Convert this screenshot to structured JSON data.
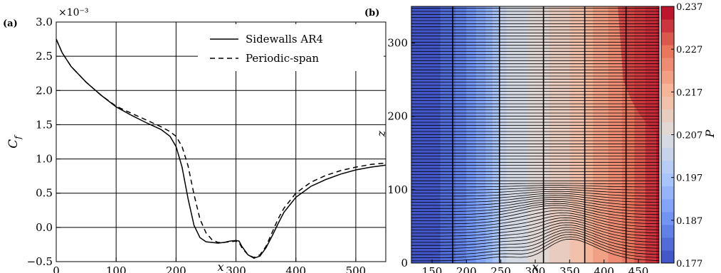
{
  "chart_data": [
    {
      "panel_label": "(a)",
      "type": "line",
      "xlabel": "x",
      "ylabel": "C_f",
      "exponent_label": "×10⁻³",
      "xlim": [
        0,
        550
      ],
      "ylim": [
        -0.5,
        3.0
      ],
      "xticks": [
        "0",
        "100",
        "200",
        "300",
        "400",
        "500"
      ],
      "yticks": [
        "−0.5",
        "0.0",
        "0.5",
        "1.0",
        "1.5",
        "2.0",
        "2.5",
        "3.0"
      ],
      "grid": true,
      "legend_position": "top-right",
      "series": [
        {
          "name": "Sidewalls AR4",
          "style": "solid",
          "x": [
            0,
            10,
            25,
            50,
            75,
            100,
            125,
            150,
            175,
            190,
            200,
            210,
            220,
            230,
            240,
            250,
            260,
            270,
            280,
            290,
            300,
            305,
            310,
            320,
            330,
            340,
            350,
            360,
            370,
            380,
            400,
            425,
            450,
            475,
            500,
            525,
            550
          ],
          "y": [
            2.75,
            2.55,
            2.35,
            2.12,
            1.93,
            1.76,
            1.64,
            1.53,
            1.43,
            1.33,
            1.18,
            0.88,
            0.42,
            0.03,
            -0.15,
            -0.21,
            -0.22,
            -0.23,
            -0.22,
            -0.2,
            -0.19,
            -0.2,
            -0.28,
            -0.4,
            -0.45,
            -0.42,
            -0.3,
            -0.13,
            0.05,
            0.22,
            0.44,
            0.6,
            0.7,
            0.78,
            0.84,
            0.88,
            0.91
          ]
        },
        {
          "name": "Periodic-span",
          "style": "dashed",
          "x": [
            0,
            10,
            25,
            50,
            75,
            100,
            125,
            150,
            175,
            190,
            200,
            210,
            220,
            230,
            240,
            250,
            260,
            270,
            280,
            290,
            300,
            305,
            310,
            320,
            330,
            340,
            350,
            360,
            370,
            380,
            400,
            425,
            450,
            475,
            500,
            525,
            550
          ],
          "y": [
            2.75,
            2.55,
            2.35,
            2.12,
            1.93,
            1.77,
            1.67,
            1.57,
            1.47,
            1.4,
            1.33,
            1.18,
            0.9,
            0.48,
            0.12,
            -0.08,
            -0.18,
            -0.22,
            -0.22,
            -0.21,
            -0.2,
            -0.22,
            -0.3,
            -0.4,
            -0.44,
            -0.4,
            -0.28,
            -0.08,
            0.12,
            0.28,
            0.5,
            0.66,
            0.76,
            0.83,
            0.88,
            0.92,
            0.94
          ]
        }
      ]
    },
    {
      "panel_label": "(b)",
      "type": "heatmap",
      "xlabel": "x",
      "ylabel": "z",
      "colorbar_label": "P",
      "xlim": [
        120,
        480
      ],
      "ylim": [
        0,
        350
      ],
      "xticks": [
        "150",
        "200",
        "250",
        "300",
        "350",
        "400",
        "450"
      ],
      "yticks": [
        "0",
        "100",
        "200",
        "300"
      ],
      "colorbar_ticks": [
        "0.177",
        "0.187",
        "0.197",
        "0.207",
        "0.217",
        "0.227",
        "0.237"
      ],
      "colorbar_range": [
        0.177,
        0.237
      ],
      "colormap_colors": [
        "#3b4cc0",
        "#6f92f3",
        "#aac7fd",
        "#dddddd",
        "#f7b89c",
        "#e7745b",
        "#b40426"
      ],
      "pressure_profile": {
        "x": [
          120,
          150,
          175,
          200,
          225,
          245,
          250,
          265,
          290,
          310,
          330,
          350,
          370,
          385,
          400,
          420,
          440,
          460,
          480
        ],
        "P": [
          0.178,
          0.179,
          0.181,
          0.186,
          0.191,
          0.197,
          0.203,
          0.205,
          0.207,
          0.209,
          0.211,
          0.213,
          0.215,
          0.219,
          0.221,
          0.224,
          0.227,
          0.231,
          0.235
        ]
      }
    }
  ]
}
